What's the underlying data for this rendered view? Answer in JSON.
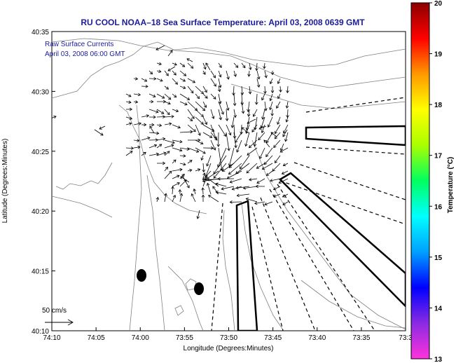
{
  "title": "RU COOL  NOAA–18  Sea Surface Temperature:  April 03, 2008 0639 GMT",
  "legend": {
    "line1": "Raw Surface Currents",
    "line2": "April 03, 2008 06:00 GMT",
    "scale_label": "50 cm/s"
  },
  "axes": {
    "xlabel": "Longitude (Degrees:Minutes)",
    "ylabel": "Latitude (Degrees:Minutes)",
    "x_ticks": [
      "74:10",
      "74:05",
      "74:00",
      "73:55",
      "73:50",
      "73:45",
      "73:40",
      "73:35",
      "73:3"
    ],
    "y_ticks": [
      "40:35",
      "40:30",
      "40:25",
      "40:20",
      "40:15",
      "40:10"
    ]
  },
  "colorbar": {
    "label": "Temperature (°C)",
    "min": 13,
    "max": 20,
    "ticks": [
      "20",
      "19",
      "18",
      "17",
      "16",
      "15",
      "14",
      "13"
    ],
    "stops": [
      "#ff33dd",
      "#8a2be2",
      "#0000ff",
      "#00a0ff",
      "#00ffff",
      "#00ff60",
      "#aaff00",
      "#ffff00",
      "#ff9900",
      "#ff0000",
      "#8b0000"
    ]
  },
  "colors": {
    "land_contour": "#777777",
    "vectors": "#000000",
    "zones": "#000000"
  }
}
